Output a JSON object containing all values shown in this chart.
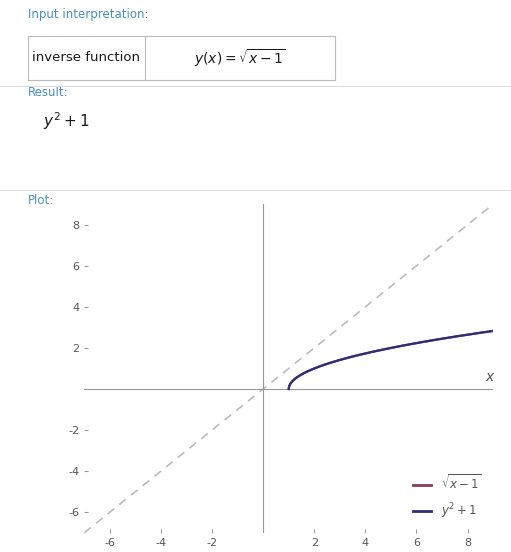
{
  "bg_color": "#ffffff",
  "header_color": "#4a90b8",
  "input_label": "Input interpretation:",
  "input_box_left": "inverse function",
  "result_label": "Result:",
  "plot_label": "Plot:",
  "xlim": [
    -7,
    9
  ],
  "ylim": [
    -7,
    9
  ],
  "xticks": [
    -6,
    -4,
    -2,
    2,
    4,
    6,
    8
  ],
  "yticks": [
    -6,
    -4,
    -2,
    2,
    4,
    6,
    8
  ],
  "xlabel": "x",
  "sqrt_color": "#8b3a5a",
  "parabola_color": "#2e2e7a",
  "dashed_color": "#bbbbbb",
  "axis_color": "#999999",
  "tick_color": "#555555",
  "separator_color": "#dddddd",
  "box_border_color": "#bbbbbb",
  "box_bg": "#ffffff"
}
